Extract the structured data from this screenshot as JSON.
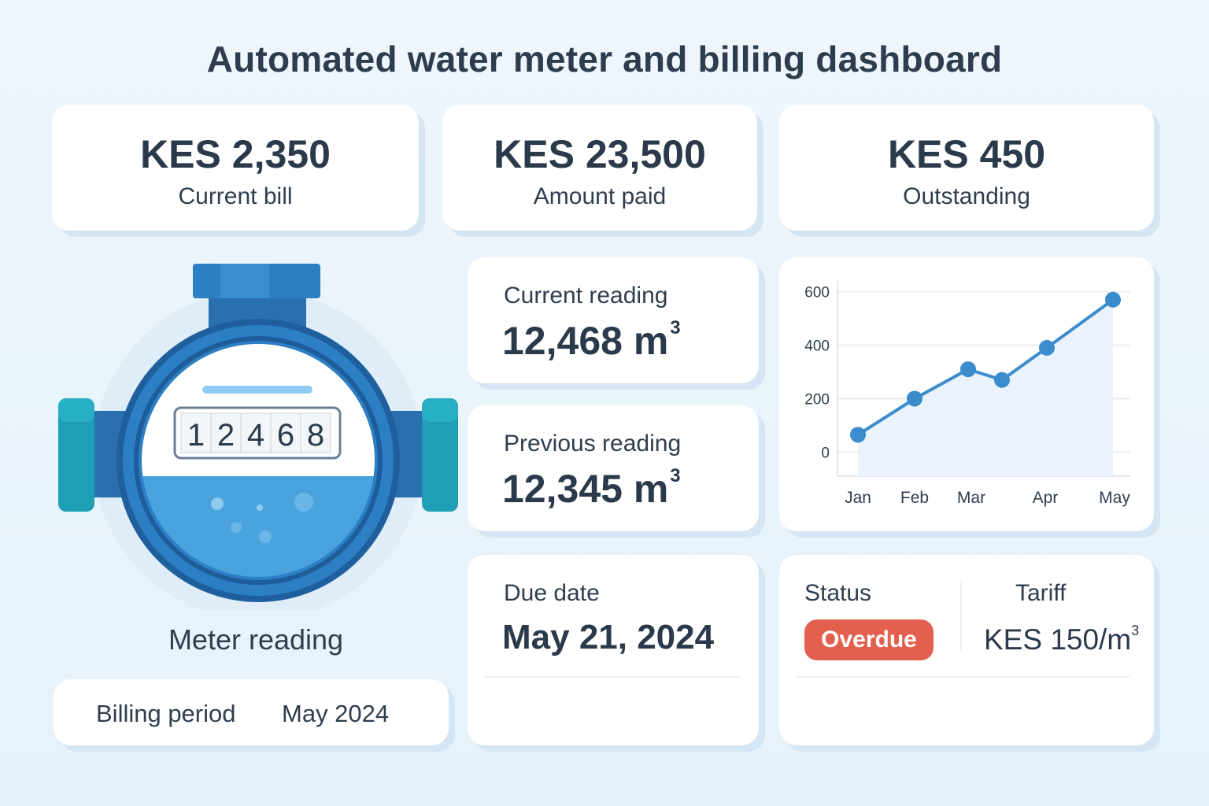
{
  "title": "Automated water meter and billing dashboard",
  "summary": {
    "current_bill": {
      "value": "KES 2,350",
      "label": "Current bill"
    },
    "amount_paid": {
      "value": "KES 23,500",
      "label": "Amount paid"
    },
    "outstanding": {
      "value": "KES 450",
      "label": "Outstanding"
    }
  },
  "meter": {
    "digits": [
      "1",
      "2",
      "4",
      "6",
      "8"
    ],
    "caption": "Meter reading"
  },
  "billing": {
    "label": "Billing period",
    "value": "May 2024"
  },
  "current_reading": {
    "label": "Current reading",
    "value": "12,468 m",
    "unit_exp": "3"
  },
  "previous_reading": {
    "label": "Previous reading",
    "value": "12,345 m",
    "unit_exp": "3"
  },
  "due": {
    "label": "Due date",
    "value": "May 21, 2024"
  },
  "status": {
    "label": "Status",
    "badge": "Overdue"
  },
  "tariff": {
    "label": "Tariff",
    "value": "KES 150/m",
    "unit_exp": "3"
  },
  "colors": {
    "accent": "#3a8ccc",
    "overdue": "#e4604e",
    "meter_blue": "#2d7fc4",
    "meter_teal": "#1f9fb5"
  },
  "chart_data": {
    "type": "line",
    "title": "",
    "xlabel": "",
    "ylabel": "",
    "x": [
      "Jan",
      "Feb",
      "Mar",
      "Mar",
      "Apr",
      "May"
    ],
    "x_ticks": [
      "Jan",
      "Feb",
      "Mar",
      "Apr",
      "May"
    ],
    "values": [
      65,
      200,
      310,
      270,
      390,
      570
    ],
    "y_ticks": [
      0,
      200,
      400,
      600
    ],
    "ylim": [
      -90,
      640
    ],
    "grid": true,
    "legend": "none",
    "area_fill": true
  }
}
